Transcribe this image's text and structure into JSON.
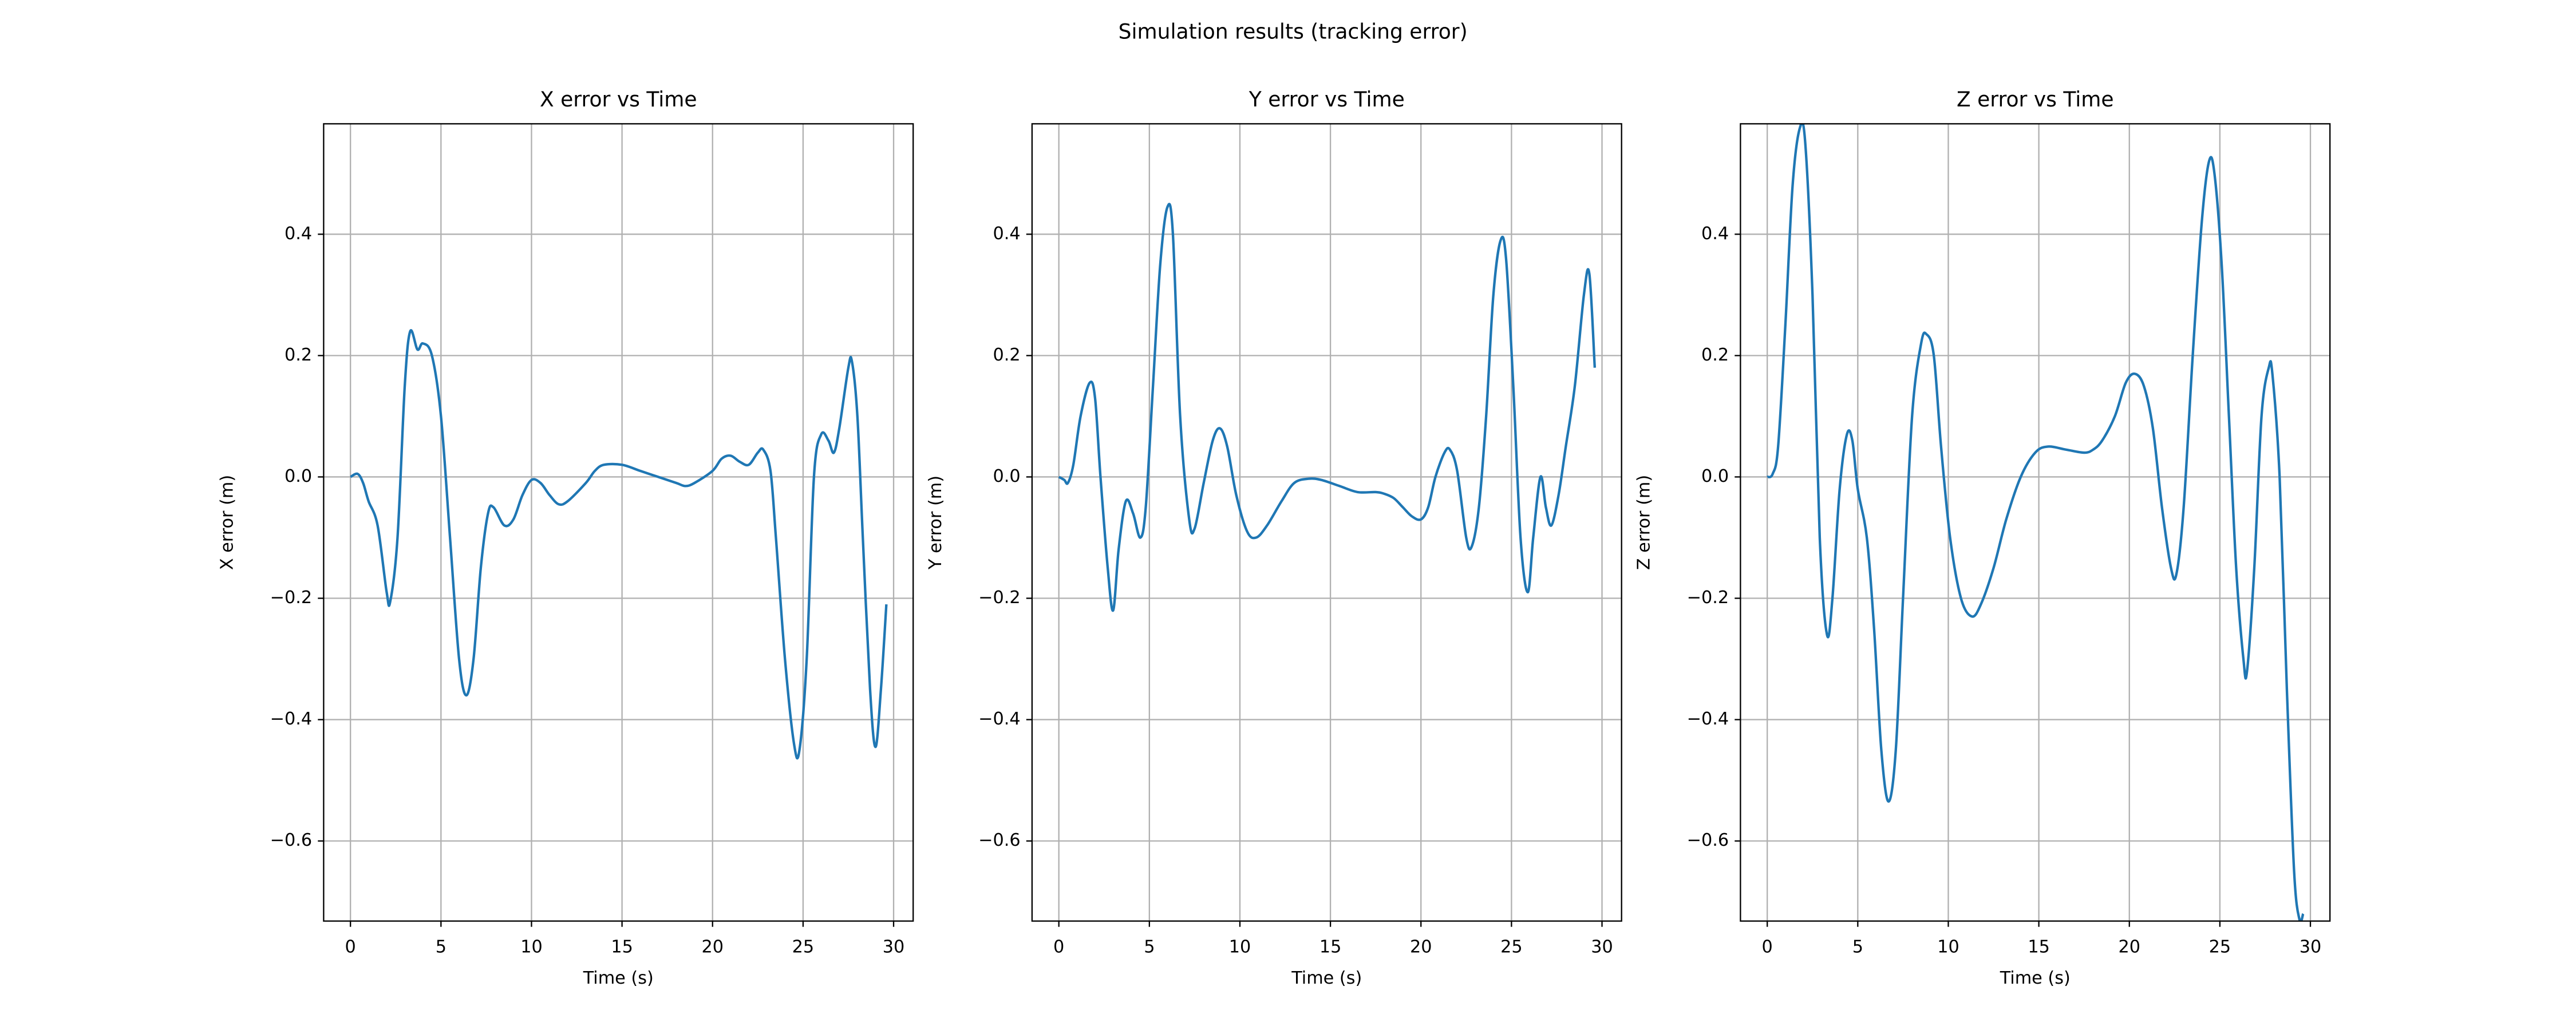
{
  "title": "Simulation results (tracking error)",
  "chart_data": [
    {
      "type": "line",
      "title": "X error vs Time",
      "xlabel": "Time (s)",
      "ylabel": "X error (m)",
      "xlim": [
        -1.48,
        31.08
      ],
      "ylim": [
        -0.732,
        0.582
      ],
      "grid": true,
      "xticks": [
        0,
        5,
        10,
        15,
        20,
        25,
        30
      ],
      "yticks": [
        {
          "value": -0.6,
          "label": "−0.6"
        },
        {
          "value": -0.4,
          "label": "−0.4"
        },
        {
          "value": -0.2,
          "label": "−0.2"
        },
        {
          "value": 0,
          "label": "0.0"
        },
        0.2,
        0.4
      ],
      "x": [
        0,
        0.4,
        0.7,
        1,
        1.5,
        2,
        2.2,
        2.6,
        3,
        3.3,
        3.7,
        4,
        4.5,
        5,
        5.5,
        6,
        6.4,
        6.8,
        7.2,
        7.6,
        7.9,
        8.5,
        9,
        9.5,
        10,
        10.5,
        11,
        11.5,
        12,
        13,
        13.5,
        14,
        15,
        16,
        17,
        18,
        18.5,
        19,
        20,
        20.5,
        21,
        21.5,
        22,
        22.5,
        22.8,
        23.2,
        23.5,
        24,
        24.5,
        24.8,
        25.2,
        25.6,
        26,
        26.4,
        26.7,
        27,
        27.5,
        27.7,
        28,
        28.3,
        28.7,
        29,
        29.3,
        29.6
      ],
      "series": [
        {
          "color": "#1f77b4",
          "values": [
            0,
            0.005,
            -0.01,
            -0.04,
            -0.08,
            -0.19,
            -0.205,
            -0.1,
            0.15,
            0.24,
            0.21,
            0.22,
            0.2,
            0.1,
            -0.1,
            -0.3,
            -0.36,
            -0.3,
            -0.15,
            -0.06,
            -0.05,
            -0.08,
            -0.07,
            -0.03,
            -0.005,
            -0.01,
            -0.03,
            -0.045,
            -0.04,
            -0.01,
            0.01,
            0.02,
            0.02,
            0.01,
            0,
            -0.01,
            -0.015,
            -0.01,
            0.01,
            0.03,
            0.035,
            0.025,
            0.02,
            0.04,
            0.045,
            0.01,
            -0.1,
            -0.3,
            -0.44,
            -0.45,
            -0.3,
            0,
            0.07,
            0.06,
            0.04,
            0.08,
            0.18,
            0.19,
            0.1,
            -0.1,
            -0.35,
            -0.445,
            -0.35,
            -0.21
          ]
        }
      ]
    },
    {
      "type": "line",
      "title": "Y error vs Time",
      "xlabel": "Time (s)",
      "ylabel": "Y error (m)",
      "xlim": [
        -1.48,
        31.08
      ],
      "ylim": [
        -0.732,
        0.582
      ],
      "grid": true,
      "xticks": [
        0,
        5,
        10,
        15,
        20,
        25,
        30
      ],
      "yticks": [
        {
          "value": -0.6,
          "label": "−0.6"
        },
        {
          "value": -0.4,
          "label": "−0.4"
        },
        {
          "value": -0.2,
          "label": "−0.2"
        },
        {
          "value": 0,
          "label": "0.0"
        },
        0.2,
        0.4
      ],
      "x": [
        0,
        0.3,
        0.5,
        0.8,
        1.2,
        1.7,
        2,
        2.3,
        2.7,
        3,
        3.3,
        3.7,
        4.1,
        4.5,
        4.8,
        5.2,
        5.6,
        6,
        6.3,
        6.7,
        7.2,
        7.5,
        8,
        8.5,
        8.9,
        9.3,
        9.8,
        10.4,
        10.9,
        11.5,
        12.3,
        13,
        13.8,
        14.5,
        15.5,
        16.5,
        17.5,
        18,
        18.5,
        19,
        19.5,
        20,
        20.4,
        20.8,
        21.3,
        21.6,
        22,
        22.5,
        22.8,
        23.2,
        23.6,
        24,
        24.4,
        24.7,
        25.1,
        25.5,
        25.9,
        26.2,
        26.6,
        26.9,
        27.2,
        27.6,
        28,
        28.5,
        29,
        29.3,
        29.6
      ],
      "series": [
        {
          "color": "#1f77b4",
          "values": [
            0,
            -0.005,
            -0.01,
            0.02,
            0.1,
            0.155,
            0.13,
            0,
            -0.15,
            -0.22,
            -0.12,
            -0.04,
            -0.06,
            -0.1,
            -0.05,
            0.15,
            0.35,
            0.445,
            0.4,
            0.1,
            -0.07,
            -0.085,
            -0.01,
            0.06,
            0.08,
            0.05,
            -0.03,
            -0.09,
            -0.1,
            -0.08,
            -0.04,
            -0.01,
            -0.003,
            -0.005,
            -0.015,
            -0.025,
            -0.025,
            -0.028,
            -0.035,
            -0.05,
            -0.065,
            -0.07,
            -0.05,
            0,
            0.04,
            0.045,
            0.01,
            -0.1,
            -0.115,
            -0.05,
            0.1,
            0.3,
            0.39,
            0.36,
            0.15,
            -0.1,
            -0.19,
            -0.1,
            0,
            -0.05,
            -0.08,
            -0.03,
            0.05,
            0.15,
            0.3,
            0.335,
            0.18
          ]
        }
      ]
    },
    {
      "type": "line",
      "title": "Z error vs Time",
      "xlabel": "Time (s)",
      "ylabel": "Z error (m)",
      "xlim": [
        -1.48,
        31.08
      ],
      "ylim": [
        -0.732,
        0.582
      ],
      "grid": true,
      "xticks": [
        0,
        5,
        10,
        15,
        20,
        25,
        30
      ],
      "yticks": [
        {
          "value": -0.6,
          "label": "−0.6"
        },
        {
          "value": -0.4,
          "label": "−0.4"
        },
        {
          "value": -0.2,
          "label": "−0.2"
        },
        {
          "value": 0,
          "label": "0.0"
        },
        0.2,
        0.4
      ],
      "x": [
        0,
        0.3,
        0.6,
        1,
        1.4,
        1.8,
        2.1,
        2.5,
        2.9,
        3.3,
        3.6,
        4,
        4.4,
        4.7,
        5,
        5.5,
        5.9,
        6.3,
        6.7,
        7.1,
        7.5,
        8,
        8.5,
        8.8,
        9.2,
        9.6,
        10.1,
        10.7,
        11.3,
        11.8,
        12.5,
        13.2,
        14,
        14.8,
        15.5,
        16.5,
        17.5,
        18,
        18.5,
        19.2,
        19.8,
        20.3,
        20.8,
        21.3,
        21.8,
        22.3,
        22.6,
        23,
        23.5,
        24,
        24.4,
        24.7,
        25.1,
        25.5,
        25.9,
        26.3,
        26.5,
        26.9,
        27.3,
        27.7,
        27.9,
        28.3,
        28.7,
        29.1,
        29.4,
        29.6
      ],
      "series": [
        {
          "color": "#1f77b4",
          "values": [
            0,
            0.005,
            0.05,
            0.25,
            0.48,
            0.575,
            0.55,
            0.3,
            -0.1,
            -0.26,
            -0.2,
            -0.02,
            0.07,
            0.06,
            -0.02,
            -0.1,
            -0.25,
            -0.45,
            -0.535,
            -0.45,
            -0.2,
            0.1,
            0.22,
            0.235,
            0.2,
            0.05,
            -0.1,
            -0.2,
            -0.23,
            -0.21,
            -0.15,
            -0.07,
            0,
            0.04,
            0.05,
            0.045,
            0.04,
            0.045,
            0.06,
            0.1,
            0.155,
            0.17,
            0.15,
            0.08,
            -0.05,
            -0.15,
            -0.16,
            -0.05,
            0.2,
            0.42,
            0.52,
            0.5,
            0.35,
            0.1,
            -0.15,
            -0.3,
            -0.32,
            -0.15,
            0.1,
            0.18,
            0.17,
            0,
            -0.35,
            -0.65,
            -0.73,
            -0.72
          ]
        }
      ]
    }
  ]
}
